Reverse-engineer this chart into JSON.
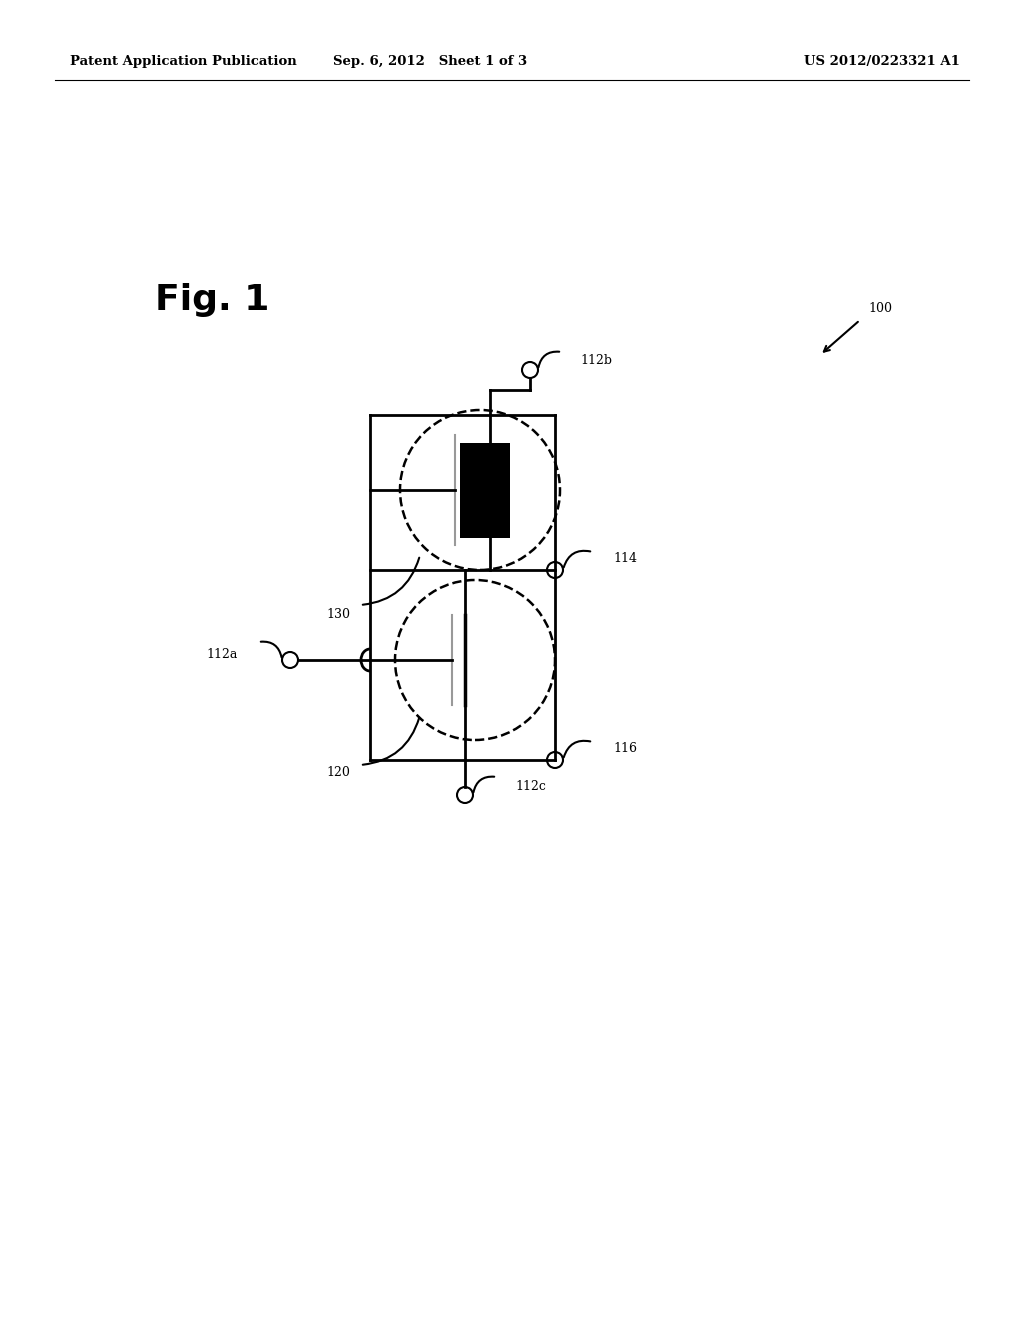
{
  "bg_color": "#ffffff",
  "lc": "#000000",
  "header_left": "Patent Application Publication",
  "header_mid": "Sep. 6, 2012   Sheet 1 of 3",
  "header_right": "US 2012/0223321 A1",
  "fig_label": "Fig. 1",
  "ref_100": "100",
  "ref_130": "130",
  "ref_112b": "112b",
  "ref_114": "114",
  "ref_120": "120",
  "ref_112a": "112a",
  "ref_116": "116",
  "ref_112c": "112c"
}
